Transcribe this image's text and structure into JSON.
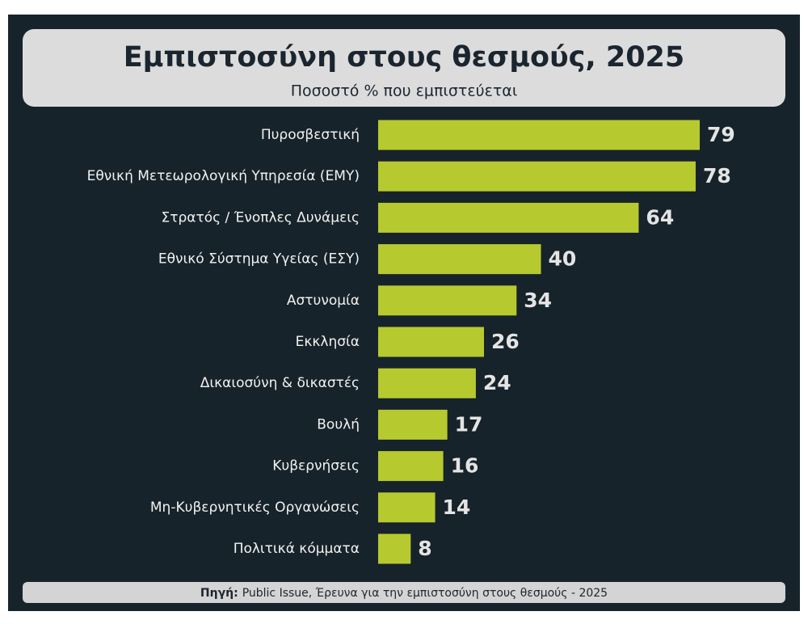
{
  "chart_data": {
    "type": "bar",
    "orientation": "horizontal",
    "title": "Εμπιστοσύνη στους θεσμούς, 2025",
    "subtitle": "Ποσοστό % που εμπιστεύεται",
    "categories": [
      "Πυροσβεστική",
      "Εθνική Μετεωρολογική Υπηρεσία (ΕΜΥ)",
      "Στρατός / Ένοπλες Δυνάμεις",
      "Εθνικό Σύστημα Υγείας (ΕΣΥ)",
      "Αστυνομία",
      "Εκκλησία",
      "Δικαιοσύνη & δικαστές",
      "Βουλή",
      "Κυβερνήσεις",
      "Μη-Κυβερνητικές Οργανώσεις",
      "Πολιτικά κόμματα"
    ],
    "values": [
      79,
      78,
      64,
      40,
      34,
      26,
      24,
      17,
      16,
      14,
      8
    ],
    "color": "#b6ca2f",
    "source_label": "Πηγή:",
    "source_text": "Public Issue, Έρευνα για την εμπιστοσύνη στους θεσμούς - 2025"
  }
}
